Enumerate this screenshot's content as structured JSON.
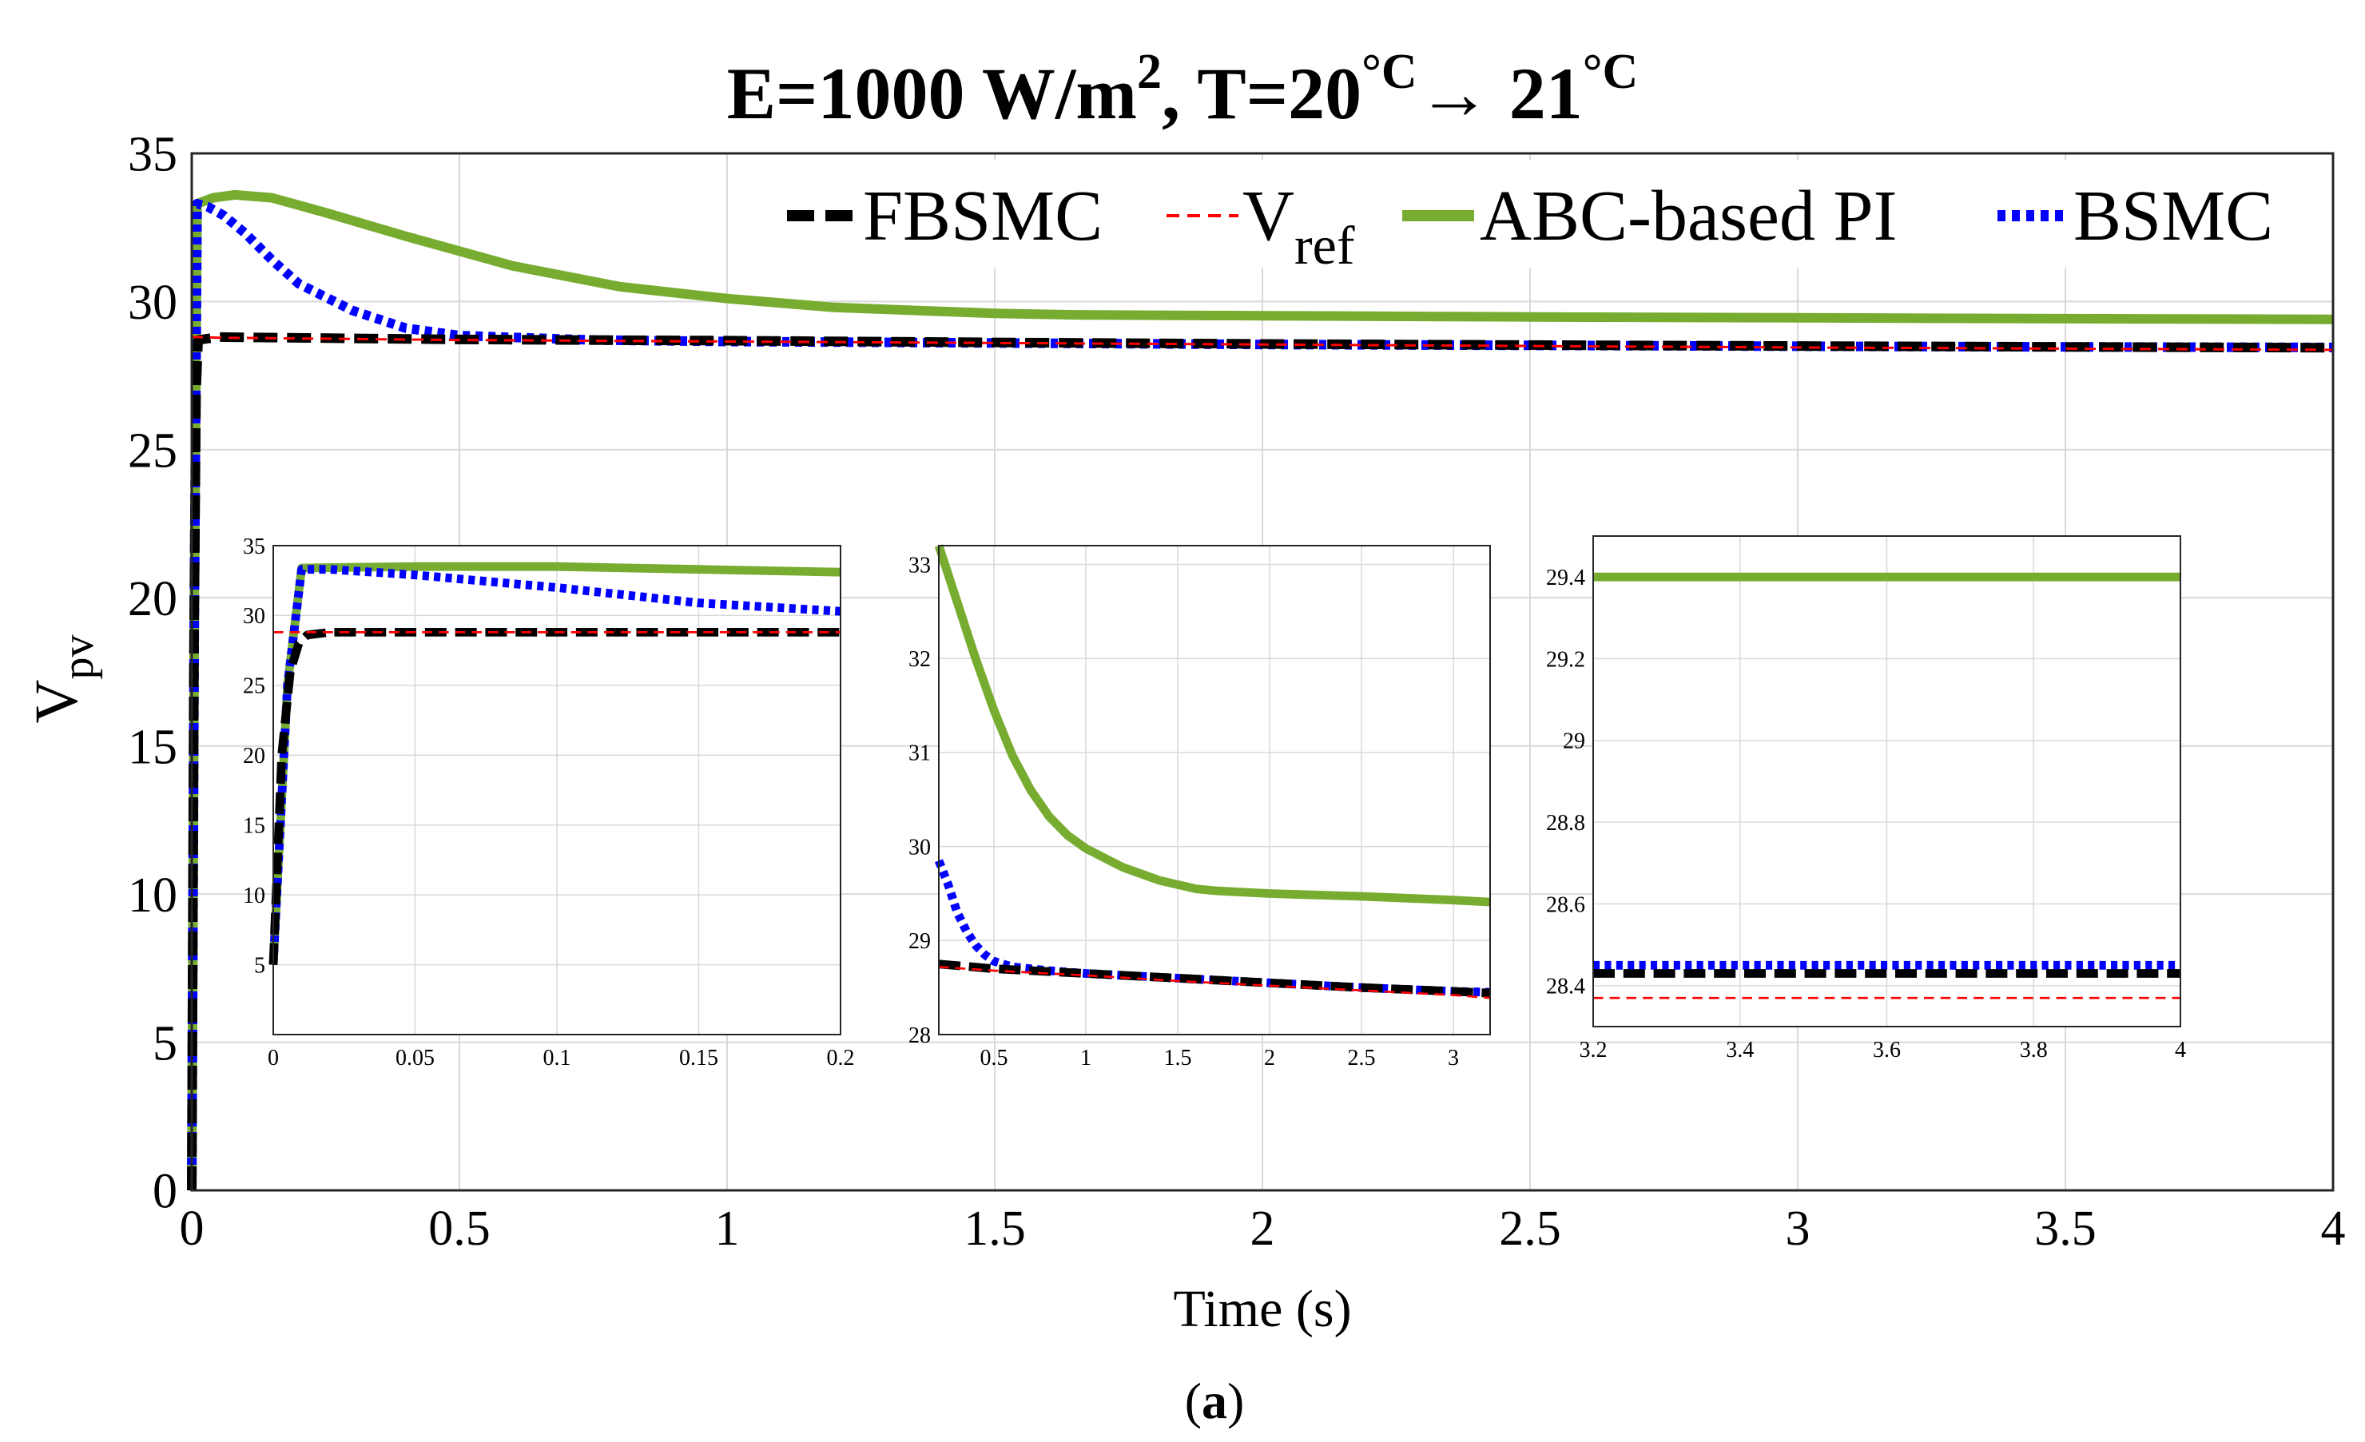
{
  "title": {
    "prefix": "E=1000 W/m",
    "exp": "2",
    "mid": ", T=20",
    "unit1": "°C",
    "arrow": "→ 21",
    "unit2": "°C"
  },
  "caption": {
    "open": "(",
    "letter": "a",
    "close": ")"
  },
  "colors": {
    "FBSMC": "#000000",
    "Vref": "#ff0000",
    "ABC": "#77ac30",
    "BSMC": "#0000ff",
    "grid": "#d9d9d9"
  },
  "legend": {
    "FBSMC": "FBSMC",
    "Vref_main": "V",
    "Vref_sub": "ref",
    "ABC": "ABC-based PI",
    "BSMC": "BSMC"
  },
  "chart_data": [
    {
      "id": "main",
      "type": "line",
      "xlabel": "Time (s)",
      "ylabel": "V",
      "ylabel_sub": "pv",
      "xlim": [
        0,
        4
      ],
      "ylim": [
        0,
        35
      ],
      "xticks": [
        0,
        0.5,
        1,
        1.5,
        2,
        2.5,
        3,
        3.5,
        4
      ],
      "xtick_labels": [
        "0",
        "0.5",
        "1",
        "1.5",
        "2",
        "2.5",
        "3",
        "3.5",
        "4"
      ],
      "yticks": [
        0,
        5,
        10,
        15,
        20,
        25,
        30,
        35
      ],
      "ytick_labels": [
        "0",
        "5",
        "10",
        "15",
        "20",
        "25",
        "30",
        "35"
      ],
      "grid": true,
      "legend_position": "top-right",
      "series": [
        {
          "name": "FBSMC",
          "x": [
            0,
            0.004,
            0.008,
            0.012,
            0.05,
            0.5,
            1,
            1.5,
            2,
            2.5,
            3,
            3.5,
            4
          ],
          "y": [
            0,
            18,
            27,
            28.7,
            28.8,
            28.72,
            28.68,
            28.62,
            28.57,
            28.53,
            28.5,
            28.47,
            28.44
          ]
        },
        {
          "name": "Vref",
          "x": [
            0,
            0.012,
            0.05,
            0.5,
            1,
            1.5,
            2,
            2.5,
            3,
            3.5,
            4
          ],
          "y": [
            28.8,
            28.8,
            28.78,
            28.7,
            28.65,
            28.6,
            28.55,
            28.5,
            28.45,
            28.41,
            28.37
          ]
        },
        {
          "name": "ABC-based PI",
          "x": [
            0,
            0.005,
            0.01,
            0.04,
            0.08,
            0.15,
            0.25,
            0.4,
            0.6,
            0.8,
            1,
            1.2,
            1.5,
            1.65,
            2,
            2.5,
            3,
            3.5,
            4
          ],
          "y": [
            0,
            20,
            33.3,
            33.5,
            33.6,
            33.5,
            33.0,
            32.2,
            31.2,
            30.5,
            30.1,
            29.8,
            29.6,
            29.55,
            29.52,
            29.48,
            29.45,
            29.42,
            29.4
          ]
        },
        {
          "name": "BSMC",
          "x": [
            0,
            0.005,
            0.01,
            0.03,
            0.06,
            0.1,
            0.15,
            0.2,
            0.3,
            0.4,
            0.5,
            0.75,
            1,
            1.5,
            2,
            2.5,
            3,
            3.5,
            4
          ],
          "y": [
            0,
            20,
            33.3,
            33.2,
            32.9,
            32.3,
            31.4,
            30.6,
            29.7,
            29.1,
            28.85,
            28.7,
            28.65,
            28.6,
            28.55,
            28.52,
            28.49,
            28.47,
            28.45
          ]
        }
      ]
    },
    {
      "id": "inset1",
      "type": "line",
      "xlim": [
        0,
        0.2
      ],
      "ylim": [
        0,
        35
      ],
      "xticks": [
        0,
        0.05,
        0.1,
        0.15,
        0.2
      ],
      "xtick_labels": [
        "0",
        "0.05",
        "0.1",
        "0.15",
        "0.2"
      ],
      "yticks": [
        5,
        10,
        15,
        20,
        25,
        30,
        35
      ],
      "ytick_labels": [
        "5",
        "10",
        "15",
        "20",
        "25",
        "30",
        "35"
      ],
      "grid": true,
      "series": [
        {
          "name": "FBSMC",
          "x": [
            0,
            0.003,
            0.006,
            0.009,
            0.012,
            0.02,
            0.1,
            0.2
          ],
          "y": [
            5,
            20,
            26,
            28,
            28.6,
            28.8,
            28.8,
            28.8
          ]
        },
        {
          "name": "Vref",
          "x": [
            0,
            0.2
          ],
          "y": [
            28.8,
            28.8
          ]
        },
        {
          "name": "ABC-based PI",
          "x": [
            0,
            0.005,
            0.01,
            0.05,
            0.1,
            0.15,
            0.2
          ],
          "y": [
            5,
            25,
            33.4,
            33.5,
            33.5,
            33.3,
            33.1
          ]
        },
        {
          "name": "BSMC",
          "x": [
            0,
            0.005,
            0.01,
            0.02,
            0.05,
            0.1,
            0.15,
            0.2
          ],
          "y": [
            5,
            25,
            33.3,
            33.3,
            32.9,
            32.0,
            30.9,
            30.3
          ]
        }
      ]
    },
    {
      "id": "inset2",
      "type": "line",
      "xlim": [
        0.2,
        3.2
      ],
      "ylim": [
        28,
        33.2
      ],
      "xticks": [
        0.5,
        1,
        1.5,
        2,
        2.5,
        3
      ],
      "xtick_labels": [
        "0.5",
        "1",
        "1.5",
        "2",
        "2.5",
        "3"
      ],
      "yticks": [
        28,
        29,
        30,
        31,
        32,
        33
      ],
      "ytick_labels": [
        "28",
        "29",
        "30",
        "31",
        "32",
        "33"
      ],
      "grid": true,
      "series": [
        {
          "name": "FBSMC",
          "x": [
            0.2,
            0.5,
            1,
            1.5,
            2,
            2.5,
            3,
            3.2
          ],
          "y": [
            28.75,
            28.7,
            28.65,
            28.6,
            28.55,
            28.5,
            28.46,
            28.44
          ]
        },
        {
          "name": "Vref",
          "x": [
            0.2,
            0.5,
            1,
            1.5,
            2,
            2.5,
            3,
            3.2
          ],
          "y": [
            28.72,
            28.68,
            28.63,
            28.57,
            28.52,
            28.47,
            28.42,
            28.39
          ]
        },
        {
          "name": "ABC-based PI",
          "x": [
            0.2,
            0.3,
            0.4,
            0.5,
            0.6,
            0.7,
            0.8,
            0.9,
            1,
            1.2,
            1.4,
            1.6,
            1.7,
            2,
            2.5,
            3,
            3.2
          ],
          "y": [
            33.2,
            32.6,
            32.0,
            31.45,
            30.97,
            30.6,
            30.32,
            30.12,
            29.98,
            29.78,
            29.64,
            29.55,
            29.53,
            29.5,
            29.47,
            29.43,
            29.41
          ]
        },
        {
          "name": "BSMC",
          "x": [
            0.2,
            0.25,
            0.3,
            0.35,
            0.4,
            0.45,
            0.5,
            0.6,
            0.8,
            1,
            1.5,
            2,
            2.5,
            3,
            3.2
          ],
          "y": [
            29.85,
            29.6,
            29.3,
            29.1,
            28.95,
            28.85,
            28.78,
            28.72,
            28.68,
            28.65,
            28.6,
            28.55,
            28.5,
            28.46,
            28.45
          ]
        }
      ]
    },
    {
      "id": "inset3",
      "type": "line",
      "xlim": [
        3.2,
        4
      ],
      "ylim": [
        28.3,
        29.5
      ],
      "xticks": [
        3.2,
        3.4,
        3.6,
        3.8,
        4
      ],
      "xtick_labels": [
        "3.2",
        "3.4",
        "3.6",
        "3.8",
        "4"
      ],
      "yticks": [
        28.4,
        28.6,
        28.8,
        29,
        29.2,
        29.4
      ],
      "ytick_labels": [
        "28.4",
        "28.6",
        "28.8",
        "29",
        "29.2",
        "29.4"
      ],
      "grid": true,
      "series": [
        {
          "name": "FBSMC",
          "x": [
            3.2,
            4
          ],
          "y": [
            28.43,
            28.43
          ]
        },
        {
          "name": "Vref",
          "x": [
            3.2,
            4
          ],
          "y": [
            28.37,
            28.37
          ]
        },
        {
          "name": "ABC-based PI",
          "x": [
            3.2,
            4
          ],
          "y": [
            29.4,
            29.4
          ]
        },
        {
          "name": "BSMC",
          "x": [
            3.2,
            4
          ],
          "y": [
            28.45,
            28.45
          ]
        }
      ]
    }
  ]
}
